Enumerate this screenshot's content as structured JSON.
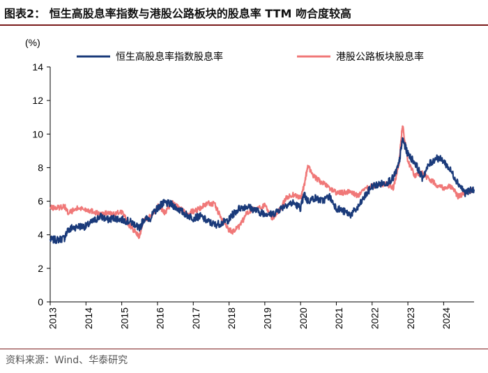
{
  "header": {
    "title": "图表2： 恒生高股息率指数与港股公路板块的股息率 TTM 吻合度较高"
  },
  "footer": {
    "source": "资料来源：Wind、华泰研究"
  },
  "colors": {
    "series1": "#1a3a7a",
    "series2": "#f07878",
    "title_rule": "#7a1a1a"
  },
  "chart_data": {
    "type": "line",
    "ylabel": "(%)",
    "ylim": [
      0,
      14
    ],
    "yticks": [
      "0",
      "2",
      "4",
      "6",
      "8",
      "10",
      "12",
      "14"
    ],
    "xlim": [
      2013.0,
      2024.85
    ],
    "xticks": [
      "2013",
      "2014",
      "2015",
      "2016",
      "2017",
      "2018",
      "2019",
      "2020",
      "2021",
      "2022",
      "2023",
      "2024"
    ],
    "legend_position": "top",
    "series": [
      {
        "name": "恒生高股息率指数股息率",
        "x": [
          2013.0,
          2013.2,
          2013.4,
          2013.5,
          2013.6,
          2013.8,
          2014.0,
          2014.2,
          2014.4,
          2014.6,
          2014.8,
          2015.0,
          2015.2,
          2015.4,
          2015.5,
          2015.6,
          2015.8,
          2016.0,
          2016.1,
          2016.2,
          2016.4,
          2016.6,
          2016.8,
          2017.0,
          2017.2,
          2017.4,
          2017.6,
          2017.8,
          2018.0,
          2018.1,
          2018.3,
          2018.5,
          2018.7,
          2018.9,
          2019.0,
          2019.2,
          2019.4,
          2019.6,
          2019.8,
          2020.0,
          2020.1,
          2020.2,
          2020.4,
          2020.6,
          2020.8,
          2021.0,
          2021.2,
          2021.4,
          2021.6,
          2021.8,
          2022.0,
          2022.2,
          2022.4,
          2022.6,
          2022.75,
          2022.85,
          2023.0,
          2023.2,
          2023.4,
          2023.6,
          2023.8,
          2024.0,
          2024.2,
          2024.4,
          2024.6,
          2024.85
        ],
        "values": [
          3.7,
          3.7,
          3.8,
          4.3,
          4.4,
          4.5,
          4.5,
          4.8,
          5.1,
          4.9,
          5.0,
          4.9,
          4.8,
          4.6,
          4.3,
          4.9,
          5.0,
          5.6,
          5.8,
          5.9,
          5.8,
          5.5,
          5.2,
          5.0,
          5.1,
          4.8,
          4.6,
          4.7,
          4.9,
          5.2,
          5.6,
          5.7,
          5.5,
          5.3,
          5.3,
          5.2,
          5.5,
          5.8,
          5.9,
          5.6,
          6.4,
          6.0,
          6.2,
          6.0,
          6.3,
          5.6,
          5.4,
          5.2,
          5.6,
          6.3,
          6.9,
          7.0,
          7.1,
          7.4,
          8.2,
          9.7,
          8.8,
          8.3,
          7.4,
          8.2,
          8.6,
          8.4,
          7.8,
          7.1,
          6.5,
          6.7
        ]
      },
      {
        "name": "港股公路板块股息率",
        "x": [
          2013.0,
          2013.2,
          2013.4,
          2013.5,
          2013.6,
          2013.8,
          2014.0,
          2014.2,
          2014.4,
          2014.6,
          2014.8,
          2015.0,
          2015.2,
          2015.4,
          2015.5,
          2015.6,
          2015.8,
          2016.0,
          2016.1,
          2016.2,
          2016.4,
          2016.6,
          2016.8,
          2017.0,
          2017.2,
          2017.4,
          2017.6,
          2017.8,
          2018.0,
          2018.1,
          2018.3,
          2018.5,
          2018.7,
          2018.9,
          2019.0,
          2019.2,
          2019.4,
          2019.6,
          2019.8,
          2020.0,
          2020.1,
          2020.2,
          2020.4,
          2020.6,
          2020.8,
          2021.0,
          2021.2,
          2021.4,
          2021.6,
          2021.8,
          2022.0,
          2022.2,
          2022.4,
          2022.6,
          2022.75,
          2022.85,
          2023.0,
          2023.2,
          2023.4,
          2023.6,
          2023.8,
          2024.0,
          2024.2,
          2024.4,
          2024.6,
          2024.85
        ],
        "values": [
          5.6,
          5.6,
          5.7,
          5.3,
          5.4,
          5.6,
          5.5,
          5.4,
          5.2,
          5.3,
          5.2,
          5.4,
          4.6,
          4.1,
          3.9,
          4.9,
          5.1,
          5.7,
          5.6,
          5.3,
          5.9,
          5.6,
          5.3,
          5.4,
          5.6,
          5.9,
          5.8,
          4.9,
          4.3,
          4.2,
          4.5,
          5.3,
          5.6,
          5.6,
          5.8,
          5.0,
          5.4,
          6.2,
          6.4,
          6.2,
          6.9,
          8.1,
          7.4,
          7.1,
          6.8,
          6.5,
          6.5,
          6.6,
          6.3,
          6.7,
          6.9,
          7.0,
          7.0,
          6.8,
          8.2,
          10.6,
          8.4,
          7.5,
          7.7,
          7.3,
          7.0,
          6.8,
          6.9,
          6.3,
          6.5,
          6.7
        ]
      }
    ]
  }
}
